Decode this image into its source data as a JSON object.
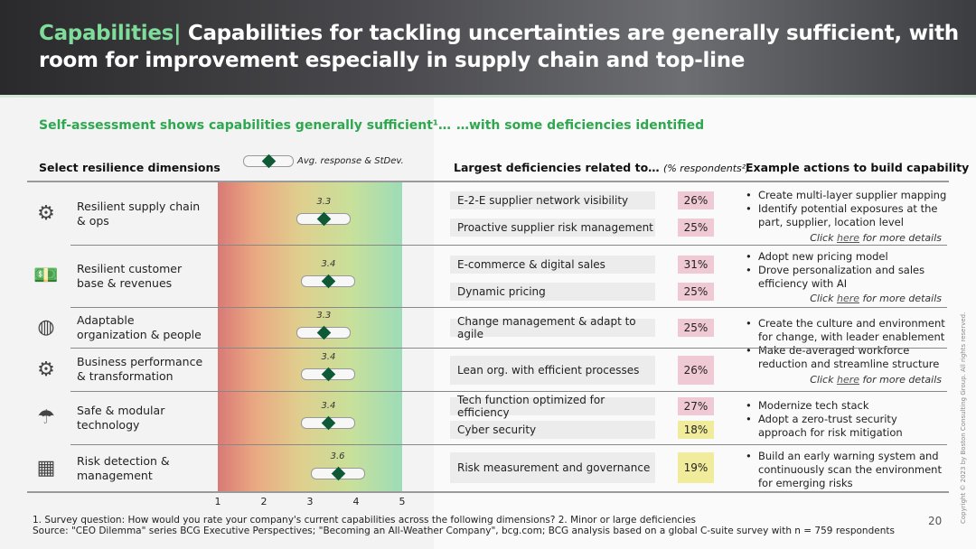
{
  "header": {
    "title_accent": "Capabilities|",
    "title_rest": " Capabilities for tackling uncertainties are generally sufficient, with room for improvement especially in supply chain and top-line"
  },
  "subtitles": {
    "left": "Self-assessment shows capabilities generally sufficient¹…",
    "right": "…with some deficiencies identified"
  },
  "columns": {
    "dimensions": "Select resilience dimensions",
    "legend": "Avg. response & StDev.",
    "deficiencies": "Largest deficiencies related to…",
    "deficiencies_note": "(% respondents²)",
    "actions": "Example actions to build capability"
  },
  "axis_ticks": [
    "1",
    "2",
    "3",
    "4",
    "5"
  ],
  "rows": [
    {
      "icon": "gears-icon",
      "name": "Resilient supply chain & ops",
      "avg": "3.3",
      "avg_value": 3.3,
      "deficiencies": [
        {
          "label": "E-2-E supplier network visibility",
          "pct": "26%"
        },
        {
          "label": "Proactive supplier risk management",
          "pct": "25%"
        }
      ],
      "actions": [
        "Create multi-layer supplier mapping",
        "Identify potential exposures at the part, supplier, location level"
      ],
      "click": true
    },
    {
      "icon": "money-hand-icon",
      "name": "Resilient customer base & revenues",
      "avg": "3.4",
      "avg_value": 3.4,
      "deficiencies": [
        {
          "label": "E-commerce & digital sales",
          "pct": "31%"
        },
        {
          "label": "Dynamic pricing",
          "pct": "25%"
        }
      ],
      "actions": [
        "Adopt new pricing model",
        "Drove personalization and sales efficiency with AI"
      ],
      "click": true
    },
    {
      "icon": "organization-icon",
      "name": "Adaptable organization & people",
      "avg": "3.3",
      "avg_value": 3.3,
      "deficiencies": [
        {
          "label": "Change management & adapt to agile",
          "pct": "25%"
        }
      ],
      "actions": [
        "Create the culture and environment for change, with leader enablement",
        "Make de-averaged workforce reduction and streamline structure"
      ],
      "click": true
    },
    {
      "icon": "gear-check-icon",
      "name": "Business performance & transformation",
      "avg": "3.4",
      "avg_value": 3.4,
      "deficiencies": [
        {
          "label": "Lean org. with efficient processes",
          "pct": "26%"
        }
      ],
      "actions": [],
      "click": false
    },
    {
      "icon": "umbrella-icon",
      "name": "Safe & modular technology",
      "avg": "3.4",
      "avg_value": 3.4,
      "deficiencies": [
        {
          "label": "Tech function optimized for efficiency",
          "pct": "27%"
        },
        {
          "label": "Cyber security",
          "pct": "18%"
        }
      ],
      "actions": [
        "Modernize tech stack",
        "Adopt a zero-trust security approach for risk mitigation"
      ],
      "click": false
    },
    {
      "icon": "risk-detection-icon",
      "name": "Risk detection & management",
      "avg": "3.6",
      "avg_value": 3.6,
      "deficiencies": [
        {
          "label": "Risk measurement and governance",
          "pct": "19%"
        }
      ],
      "actions": [
        "Build an early warning system and continuously scan the environment for emerging risks"
      ],
      "click": false
    }
  ],
  "click": {
    "pre": "Click ",
    "link": "here",
    "post": " for more details"
  },
  "footer": {
    "note": "1. Survey question: How would you rate your company's current capabilities across the following dimensions?  2. Minor or large deficiencies",
    "source": "Source: \"CEO Dilemma\" series BCG Executive Perspectives; \"Becoming an All-Weather Company\", bcg.com; BCG analysis based on a global C-suite survey with n = 759 respondents"
  },
  "page_number": "20",
  "copyright": "Copyright © 2023 by Boston Consulting Group. All rights reserved.",
  "colors": {
    "accent": "#2ea84f",
    "marker": "#0e5a37",
    "pink": "#efc9d3",
    "yellow": "#f0ec9c"
  }
}
